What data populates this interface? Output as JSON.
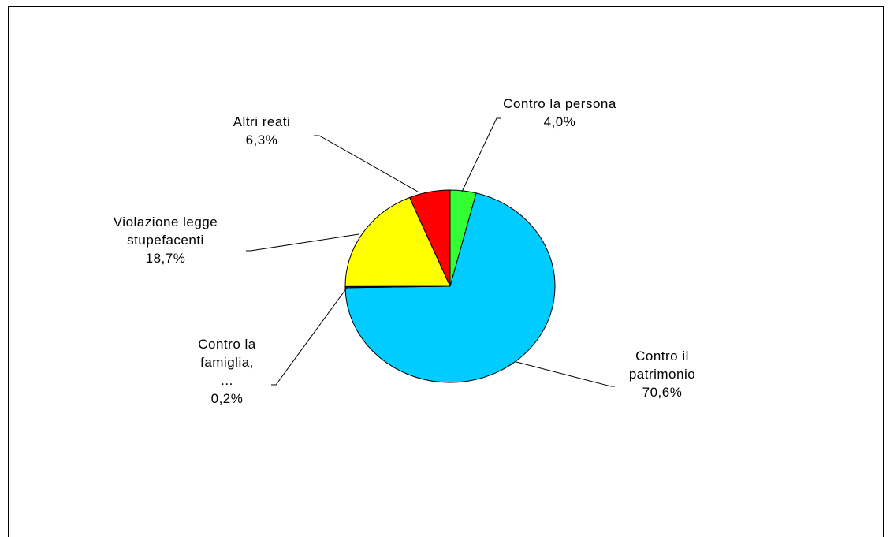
{
  "chart_data": {
    "type": "pie",
    "categories": [
      "Contro la persona",
      "Contro il patrimonio",
      "Contro la famiglia, ...",
      "Violazione legge stupefacenti",
      "Altri reati"
    ],
    "values": [
      4.0,
      70.6,
      0.2,
      18.7,
      6.3
    ],
    "value_labels": [
      "4,0%",
      "70,6%",
      "0,2%",
      "18,7%",
      "6,3%"
    ],
    "colors": [
      "#33ff33",
      "#00ccff",
      "#993366",
      "#ffff00",
      "#ff0000"
    ]
  }
}
